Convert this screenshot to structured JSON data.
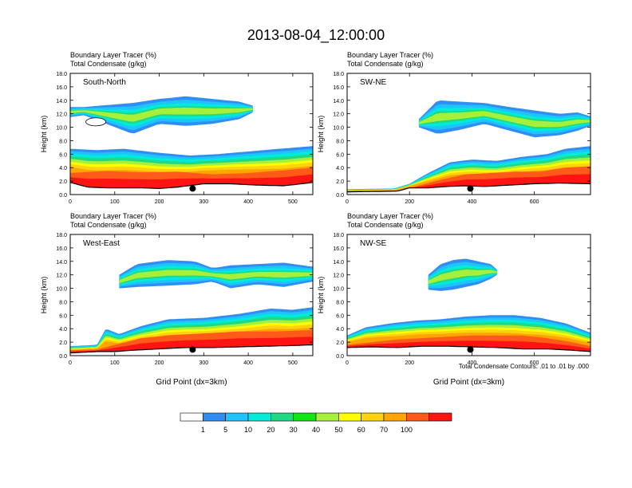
{
  "title": "2013-08-04_12:00:00",
  "colors": {
    "levels": [
      "#ffffff",
      "#2f8ef4",
      "#1fc3ff",
      "#00ebd8",
      "#21d983",
      "#12e612",
      "#a6ef3a",
      "#ffff00",
      "#ffd20f",
      "#ffa500",
      "#ff5a19",
      "#ff1414"
    ],
    "terrain": "#000000",
    "marker": "#000000"
  },
  "colorbar_labels": [
    "1",
    "5",
    "10",
    "20",
    "30",
    "40",
    "50",
    "60",
    "70",
    "100"
  ],
  "footnote": "Total Condensate Contours: .01 to .01 by .000",
  "chart_data": [
    {
      "type": "heatmap",
      "panel_label": "South-North",
      "header_line1": "Boundary Layer Tracer   (%)",
      "header_line2": "Total Condensate   (g/kg)",
      "xlabel": "",
      "ylabel": "Height (km)",
      "xlim": [
        0,
        545
      ],
      "ylim": [
        0,
        18
      ],
      "xticks": [
        0,
        100,
        200,
        300,
        400,
        500
      ],
      "yticks": [
        0,
        2,
        4,
        6,
        8,
        10,
        12,
        14,
        16,
        18
      ],
      "ytick_labels": [
        "0.0",
        "2.0",
        "4.0",
        "6.0",
        "8.0",
        "10.0",
        "12.0",
        "14.0",
        "16.0",
        "18.0"
      ],
      "marker_x": 275,
      "layer_top": [
        [
          0,
          6.8
        ],
        [
          60,
          6.6
        ],
        [
          120,
          6.8
        ],
        [
          200,
          6.2
        ],
        [
          270,
          5.8
        ],
        [
          330,
          6.0
        ],
        [
          400,
          6.4
        ],
        [
          470,
          6.8
        ],
        [
          545,
          7.2
        ]
      ],
      "red_top": [
        [
          0,
          3.2
        ],
        [
          80,
          3.5
        ],
        [
          160,
          3.3
        ],
        [
          240,
          3.4
        ],
        [
          320,
          3.0
        ],
        [
          400,
          3.2
        ],
        [
          480,
          3.6
        ],
        [
          545,
          4.0
        ]
      ],
      "terrain": [
        [
          0,
          1.8
        ],
        [
          40,
          1.1
        ],
        [
          80,
          1.0
        ],
        [
          120,
          1.0
        ],
        [
          160,
          1.0
        ],
        [
          200,
          0.9
        ],
        [
          240,
          1.1
        ],
        [
          300,
          1.6
        ],
        [
          360,
          1.6
        ],
        [
          420,
          1.4
        ],
        [
          480,
          1.3
        ],
        [
          545,
          1.8
        ]
      ],
      "cloud": [
        [
          0,
          11.5,
          13.0
        ],
        [
          30,
          11.8,
          13.0
        ],
        [
          140,
          9.0,
          13.6
        ],
        [
          200,
          10.5,
          14.2
        ],
        [
          260,
          10.2,
          14.6
        ],
        [
          320,
          10.5,
          14.2
        ],
        [
          380,
          11.2,
          13.8
        ],
        [
          410,
          12.2,
          13.2
        ]
      ],
      "cloud_holes": [
        [
          35,
          80,
          10.2,
          11.4
        ]
      ]
    },
    {
      "type": "heatmap",
      "panel_label": "SW-NE",
      "header_line1": "Boundary Layer Tracer   (%)",
      "header_line2": "Total Condensate   (g/kg)",
      "xlabel": "",
      "ylabel": "Height (km)",
      "xlim": [
        0,
        780
      ],
      "ylim": [
        0,
        18
      ],
      "xticks": [
        0,
        200,
        400,
        600
      ],
      "yticks": [
        0,
        2,
        4,
        6,
        8,
        10,
        12,
        14,
        16,
        18
      ],
      "ytick_labels": [
        "0.0",
        "2.0",
        "4.0",
        "6.0",
        "8.0",
        "10.0",
        "12.0",
        "14.0",
        "16.0",
        "18.0"
      ],
      "marker_x": 395,
      "layer_top": [
        [
          0,
          0.8
        ],
        [
          150,
          0.9
        ],
        [
          200,
          1.6
        ],
        [
          260,
          3.2
        ],
        [
          330,
          4.8
        ],
        [
          400,
          5.2
        ],
        [
          480,
          5.0
        ],
        [
          560,
          5.6
        ],
        [
          640,
          6.0
        ],
        [
          700,
          6.8
        ],
        [
          780,
          7.2
        ]
      ],
      "red_top": [
        [
          0,
          0.5
        ],
        [
          160,
          0.6
        ],
        [
          220,
          1.2
        ],
        [
          300,
          2.2
        ],
        [
          380,
          3.0
        ],
        [
          460,
          3.2
        ],
        [
          540,
          3.4
        ],
        [
          620,
          3.4
        ],
        [
          700,
          4.0
        ],
        [
          780,
          4.2
        ]
      ],
      "terrain": [
        [
          0,
          0.4
        ],
        [
          160,
          0.5
        ],
        [
          200,
          1.0
        ],
        [
          260,
          1.0
        ],
        [
          320,
          1.2
        ],
        [
          380,
          1.3
        ],
        [
          440,
          1.2
        ],
        [
          520,
          1.4
        ],
        [
          600,
          1.6
        ],
        [
          680,
          1.7
        ],
        [
          780,
          1.6
        ]
      ],
      "cloud": [
        [
          230,
          10.0,
          11.2
        ],
        [
          290,
          9.0,
          14.0
        ],
        [
          360,
          9.6,
          13.8
        ],
        [
          440,
          10.5,
          13.6
        ],
        [
          520,
          9.5,
          13.0
        ],
        [
          600,
          8.5,
          12.5
        ],
        [
          680,
          8.8,
          12.0
        ],
        [
          740,
          9.5,
          12.2
        ],
        [
          780,
          10.2,
          11.6
        ]
      ],
      "cloud_holes": []
    },
    {
      "type": "heatmap",
      "panel_label": "West-East",
      "header_line1": "Boundary Layer Tracer   (%)",
      "header_line2": "Total Condensate   (g/kg)",
      "xlabel": "Grid Point (dx=3km)",
      "ylabel": "Height (km)",
      "xlim": [
        0,
        545
      ],
      "ylim": [
        0,
        18
      ],
      "xticks": [
        0,
        100,
        200,
        300,
        400,
        500
      ],
      "yticks": [
        0,
        2,
        4,
        6,
        8,
        10,
        12,
        14,
        16,
        18
      ],
      "ytick_labels": [
        "0.0",
        "2.0",
        "4.0",
        "6.0",
        "8.0",
        "10.0",
        "12.0",
        "14.0",
        "16.0",
        "18.0"
      ],
      "marker_x": 275,
      "layer_top": [
        [
          0,
          1.4
        ],
        [
          60,
          1.6
        ],
        [
          80,
          4.0
        ],
        [
          110,
          3.2
        ],
        [
          160,
          4.4
        ],
        [
          220,
          5.4
        ],
        [
          300,
          5.6
        ],
        [
          380,
          6.2
        ],
        [
          450,
          7.0
        ],
        [
          500,
          6.8
        ],
        [
          545,
          7.2
        ]
      ],
      "red_top": [
        [
          0,
          0.8
        ],
        [
          60,
          0.9
        ],
        [
          100,
          1.6
        ],
        [
          160,
          2.6
        ],
        [
          220,
          3.0
        ],
        [
          300,
          3.3
        ],
        [
          380,
          3.6
        ],
        [
          460,
          3.6
        ],
        [
          545,
          3.8
        ]
      ],
      "terrain": [
        [
          0,
          0.4
        ],
        [
          60,
          0.6
        ],
        [
          100,
          0.6
        ],
        [
          140,
          0.8
        ],
        [
          200,
          1.0
        ],
        [
          260,
          1.2
        ],
        [
          320,
          1.2
        ],
        [
          380,
          1.3
        ],
        [
          440,
          1.4
        ],
        [
          500,
          1.5
        ],
        [
          545,
          1.6
        ]
      ],
      "cloud": [
        [
          110,
          10.0,
          12.0
        ],
        [
          150,
          10.2,
          13.6
        ],
        [
          220,
          10.4,
          14.2
        ],
        [
          280,
          10.6,
          14.0
        ],
        [
          320,
          11.0,
          13.0
        ],
        [
          360,
          10.0,
          13.4
        ],
        [
          420,
          10.6,
          13.6
        ],
        [
          480,
          10.2,
          13.8
        ],
        [
          545,
          11.0,
          13.2
        ]
      ],
      "cloud_holes": []
    },
    {
      "type": "heatmap",
      "panel_label": "NW-SE",
      "header_line1": "Boundary Layer Tracer   (%)",
      "header_line2": "Total Condensate   (g/kg)",
      "xlabel": "Grid Point (dx=3km)",
      "ylabel": "Height (km)",
      "xlim": [
        0,
        780
      ],
      "ylim": [
        0,
        18
      ],
      "xticks": [
        0,
        200,
        400,
        600
      ],
      "yticks": [
        0,
        2,
        4,
        6,
        8,
        10,
        12,
        14,
        16,
        18
      ],
      "ytick_labels": [
        "0.0",
        "2.0",
        "4.0",
        "6.0",
        "8.0",
        "10.0",
        "12.0",
        "14.0",
        "16.0",
        "18.0"
      ],
      "marker_x": 395,
      "layer_top": [
        [
          0,
          3.0
        ],
        [
          60,
          4.2
        ],
        [
          140,
          4.8
        ],
        [
          220,
          5.2
        ],
        [
          300,
          5.4
        ],
        [
          380,
          5.8
        ],
        [
          460,
          6.0
        ],
        [
          540,
          6.0
        ],
        [
          620,
          5.6
        ],
        [
          700,
          4.8
        ],
        [
          780,
          3.4
        ]
      ],
      "red_top": [
        [
          0,
          1.6
        ],
        [
          80,
          2.0
        ],
        [
          160,
          2.4
        ],
        [
          240,
          2.6
        ],
        [
          320,
          2.8
        ],
        [
          400,
          3.0
        ],
        [
          480,
          3.0
        ],
        [
          560,
          3.0
        ],
        [
          640,
          2.6
        ],
        [
          720,
          2.0
        ],
        [
          780,
          1.4
        ]
      ],
      "terrain": [
        [
          0,
          1.2
        ],
        [
          80,
          1.3
        ],
        [
          160,
          1.2
        ],
        [
          240,
          1.4
        ],
        [
          320,
          1.4
        ],
        [
          400,
          1.3
        ],
        [
          480,
          1.2
        ],
        [
          560,
          1.0
        ],
        [
          640,
          1.0
        ],
        [
          720,
          0.8
        ],
        [
          780,
          0.6
        ]
      ],
      "cloud": [
        [
          260,
          9.8,
          12.0
        ],
        [
          300,
          9.6,
          13.6
        ],
        [
          340,
          9.8,
          14.2
        ],
        [
          380,
          10.2,
          14.4
        ],
        [
          420,
          10.6,
          14.0
        ],
        [
          460,
          11.4,
          13.6
        ],
        [
          480,
          12.0,
          12.8
        ]
      ],
      "cloud_holes": []
    }
  ]
}
